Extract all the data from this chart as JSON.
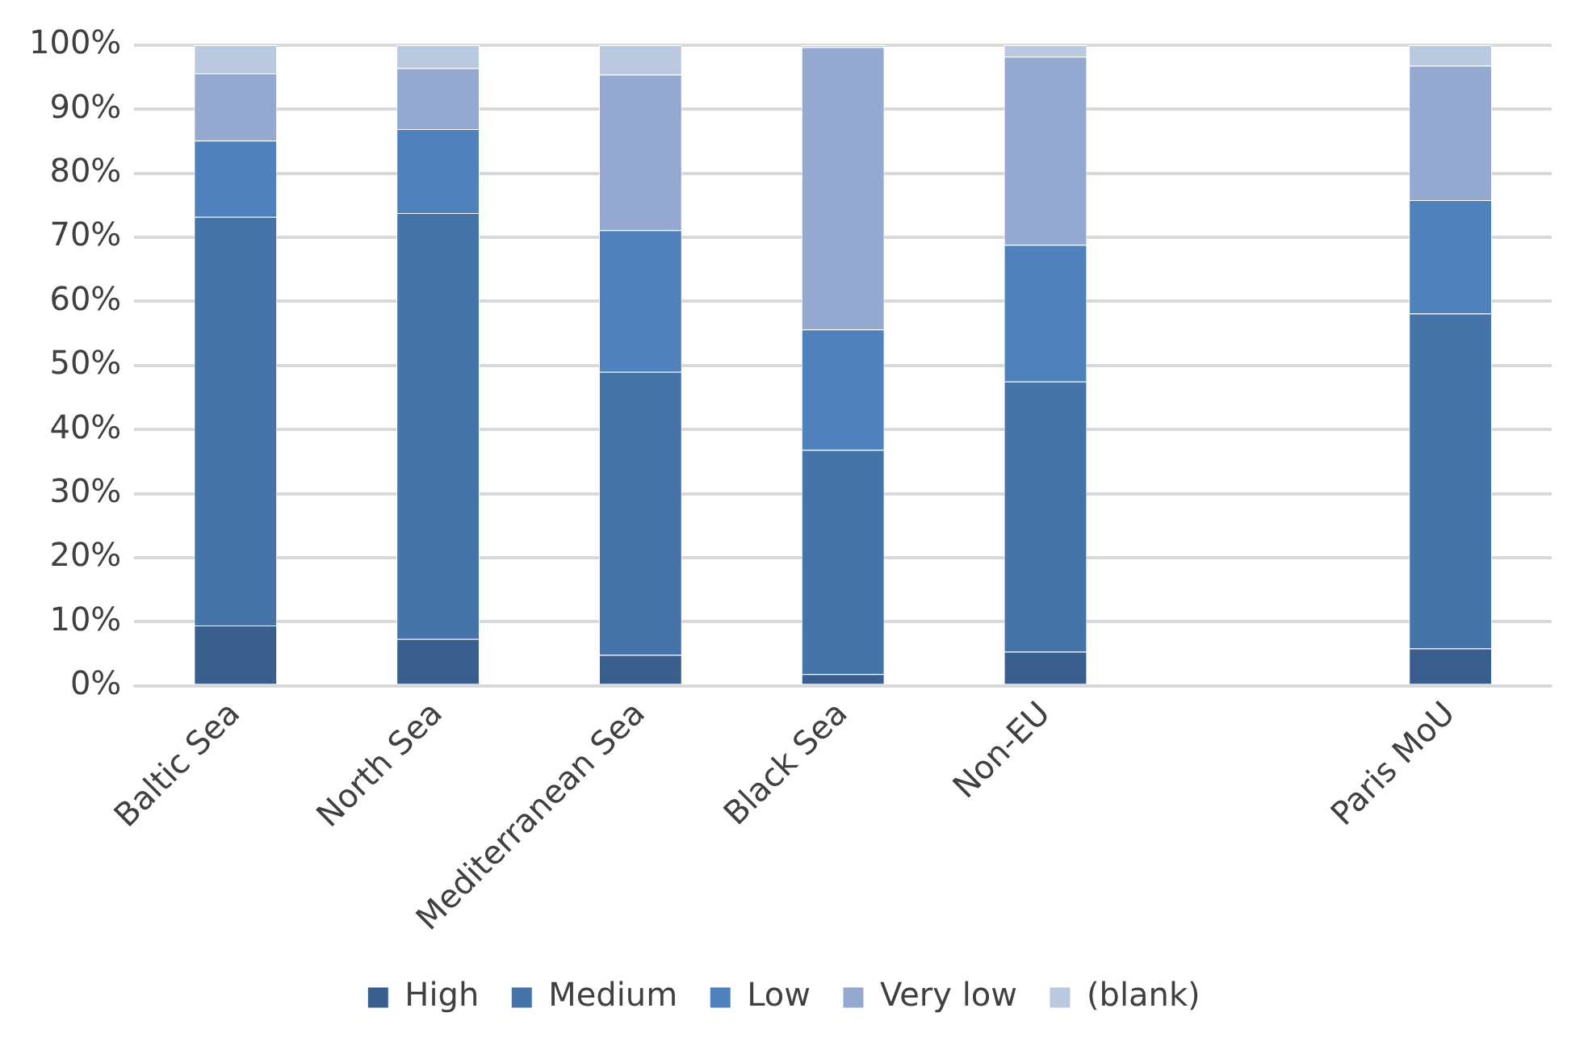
{
  "chart_data": {
    "type": "bar",
    "stacked": true,
    "categories": [
      "Baltic Sea",
      "North Sea",
      "Mediterranean Sea",
      "Black Sea",
      "Non-EU",
      null,
      "Paris MoU"
    ],
    "series": [
      {
        "name": "High",
        "color": "#3a5f8e",
        "values": [
          9.4,
          7.3,
          4.8,
          1.8,
          5.3,
          null,
          5.8
        ]
      },
      {
        "name": "Medium",
        "color": "#4674a8",
        "values": [
          63.8,
          66.5,
          44.2,
          35.0,
          42.2,
          null,
          52.3
        ]
      },
      {
        "name": "Low",
        "color": "#4f81bd",
        "values": [
          11.9,
          13.1,
          22.1,
          18.8,
          21.3,
          null,
          17.7
        ]
      },
      {
        "name": "Very low",
        "color": "#95a9d0",
        "values": [
          10.5,
          9.5,
          24.3,
          44.1,
          29.4,
          null,
          21.0
        ]
      },
      {
        "name": "(blank)",
        "color": "#bac8e0",
        "values": [
          4.4,
          3.6,
          4.6,
          0.3,
          1.8,
          null,
          3.2
        ]
      }
    ],
    "ylim": [
      0,
      100
    ],
    "yticks": [
      {
        "value": 0,
        "label": "0%"
      },
      {
        "value": 10,
        "label": "10%"
      },
      {
        "value": 20,
        "label": "20%"
      },
      {
        "value": 30,
        "label": "30%"
      },
      {
        "value": 40,
        "label": "40%"
      },
      {
        "value": 50,
        "label": "50%"
      },
      {
        "value": 60,
        "label": "60%"
      },
      {
        "value": 70,
        "label": "70%"
      },
      {
        "value": 80,
        "label": "80%"
      },
      {
        "value": 90,
        "label": "90%"
      },
      {
        "value": 100,
        "label": "100%"
      }
    ],
    "grid": "y",
    "legend": "bottom"
  }
}
